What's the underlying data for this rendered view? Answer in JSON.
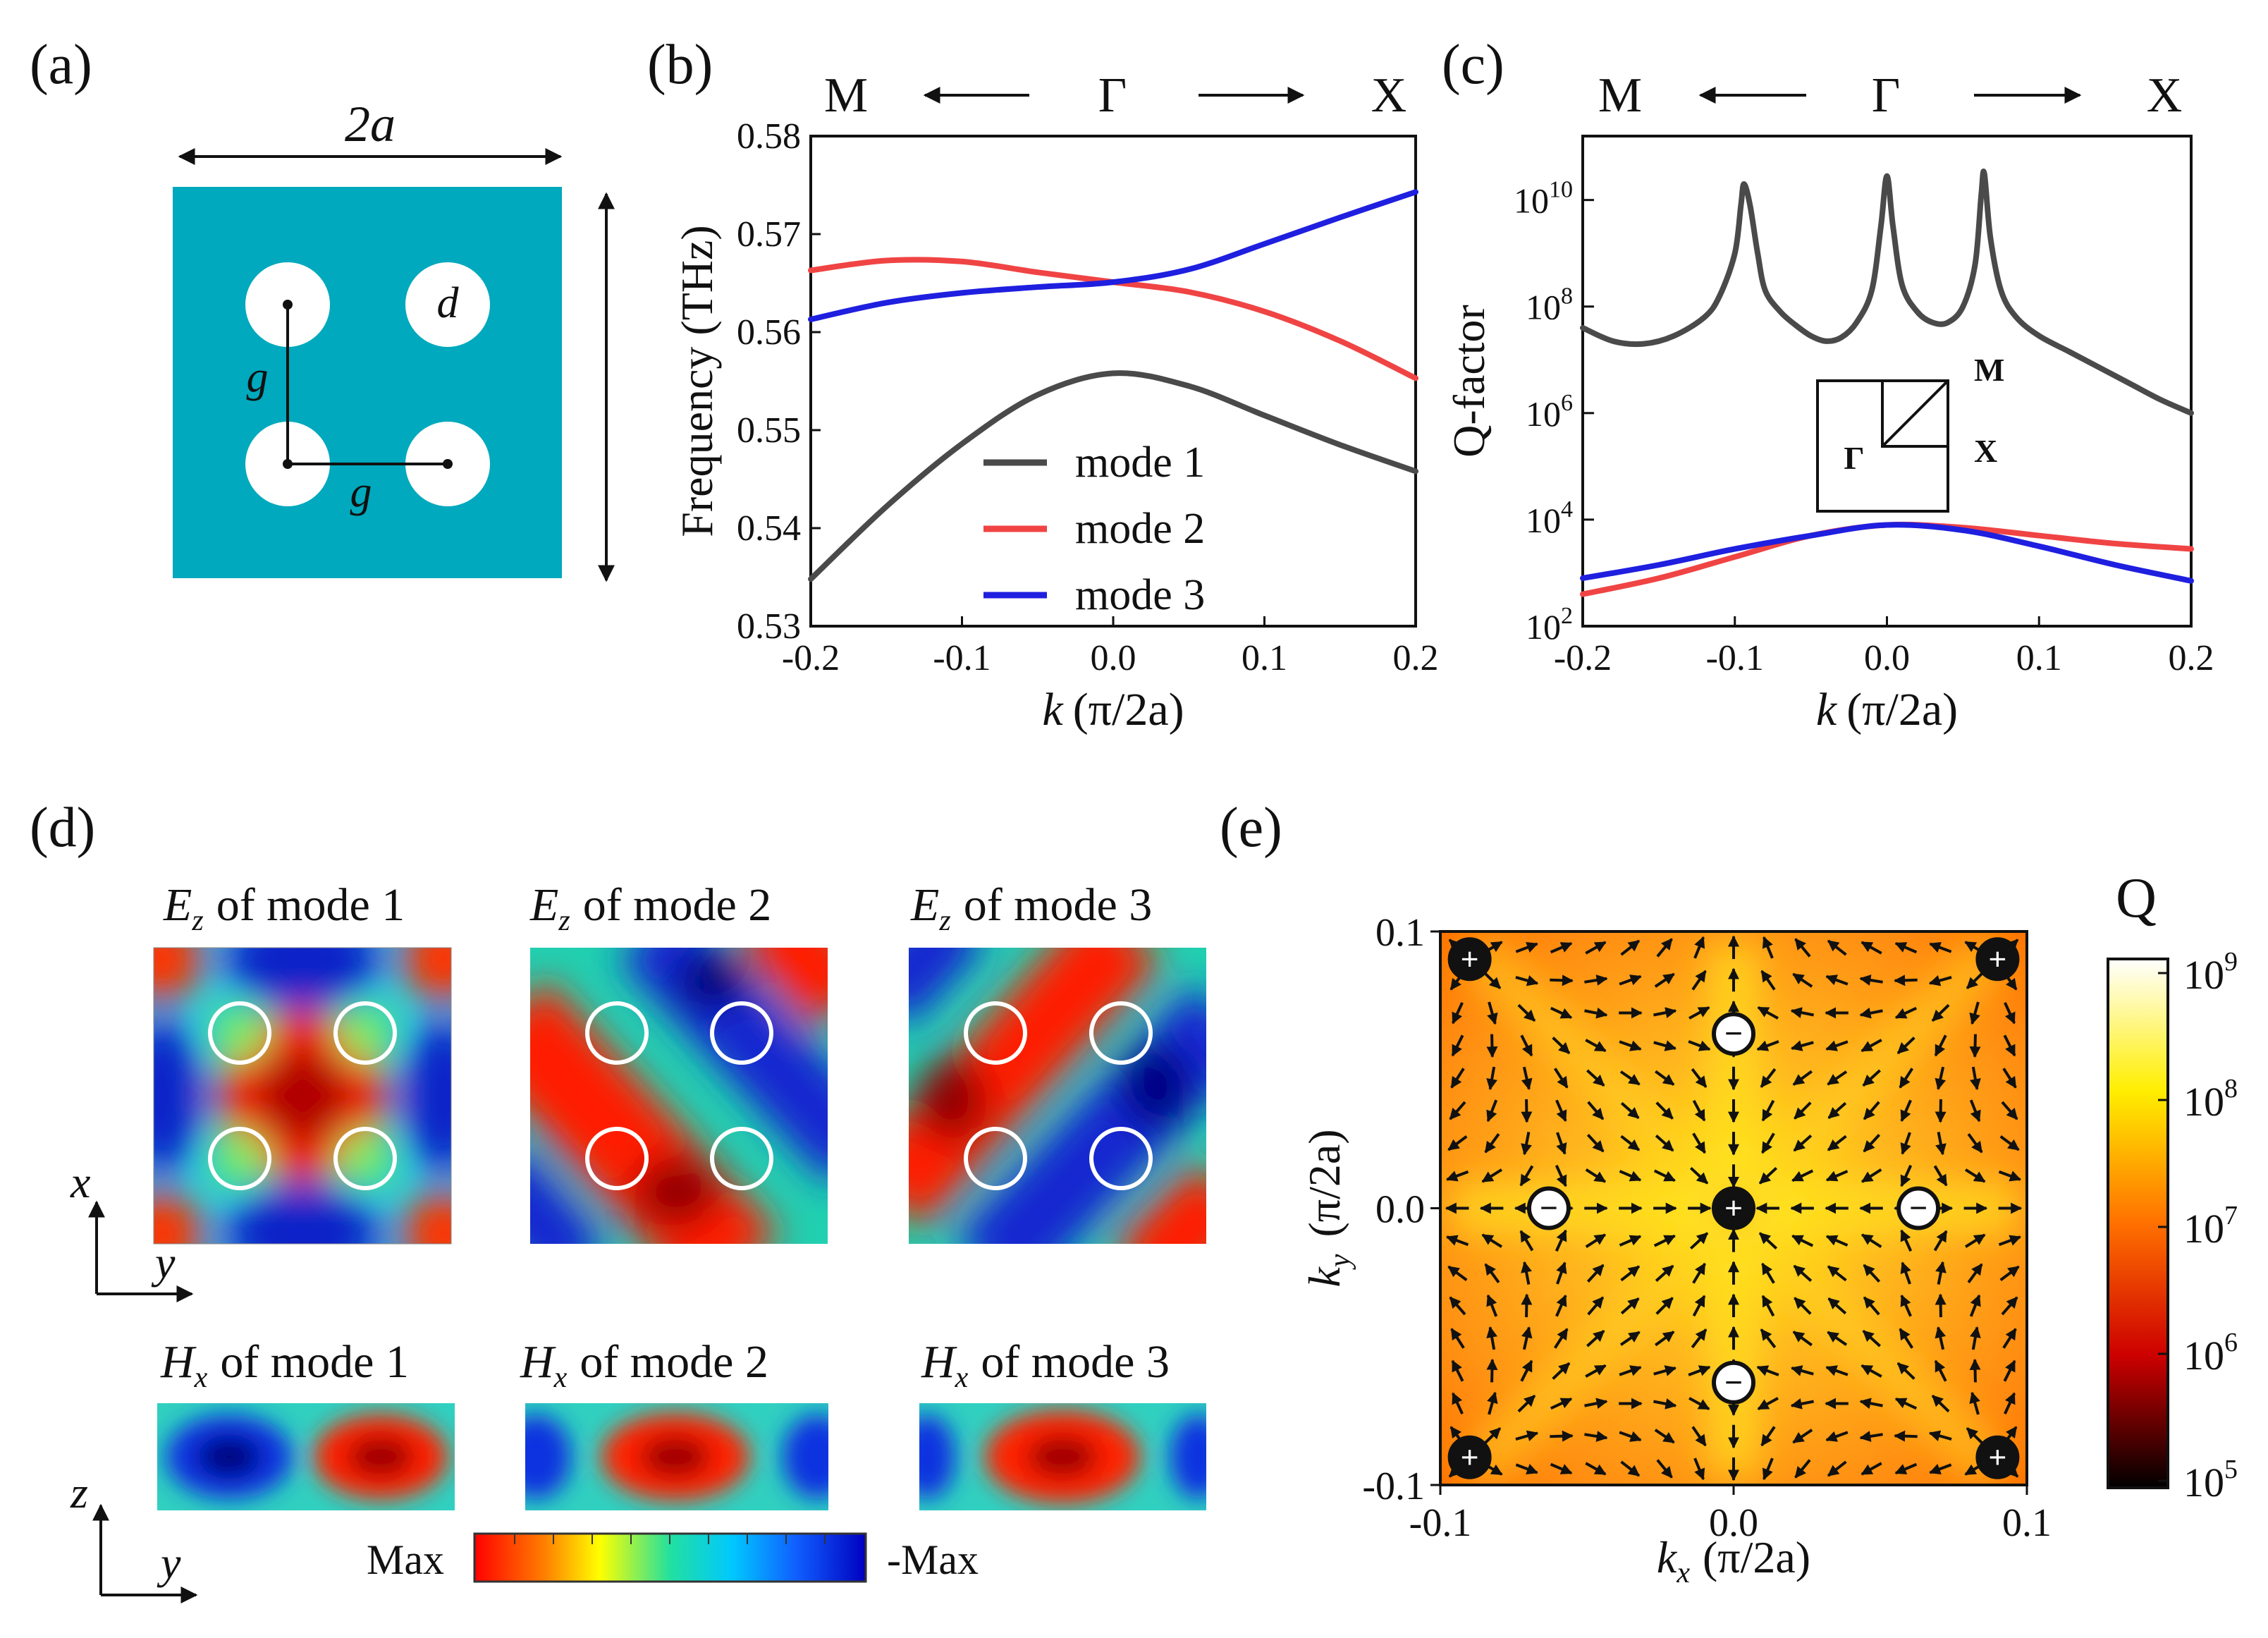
{
  "panels": {
    "a": {
      "label": "(a)",
      "width_label": "2a",
      "diameter_label": "d",
      "gap_label_vertical": "g",
      "gap_label_horizontal": "g",
      "slab_color": "#00A9BD"
    },
    "b": {
      "label": "(b)",
      "dir_left": "M",
      "dir_center": "Γ",
      "dir_right": "X"
    },
    "c": {
      "label": "(c)",
      "dir_left": "M",
      "dir_center": "Γ",
      "dir_right": "X",
      "inset": {
        "gamma": "Γ",
        "m": "M",
        "x": "X"
      }
    },
    "d": {
      "label": "(d)",
      "ez_titles": [
        "of mode 1",
        "of mode 2",
        "of mode 3"
      ],
      "hx_titles": [
        "of mode 1",
        "of mode 2",
        "of mode 3"
      ],
      "ez_symbol": "E",
      "ez_sub": "z",
      "hx_symbol": "H",
      "hx_sub": "x",
      "axes_top": {
        "vertical": "x",
        "horizontal": "y"
      },
      "axes_bottom": {
        "vertical": "z",
        "horizontal": "y"
      },
      "colorbar": {
        "max_label": "Max",
        "min_label": "-Max"
      }
    },
    "e": {
      "label": "(e)",
      "colorbar_title": "Q"
    }
  },
  "chart_data": [
    {
      "id": "b",
      "type": "line",
      "ylabel": "Frequency (THz)",
      "xlabel_var": "k",
      "xlabel_unit": "(π/2a)",
      "xlim": [
        -0.2,
        0.2
      ],
      "ylim": [
        0.53,
        0.58
      ],
      "xticks": [
        -0.2,
        -0.1,
        0.0,
        0.1,
        0.2
      ],
      "xtick_labels": [
        "-0.2",
        "-0.1",
        "0.0",
        "0.1",
        "0.2"
      ],
      "yticks": [
        0.53,
        0.54,
        0.55,
        0.56,
        0.57,
        0.58
      ],
      "ytick_labels": [
        "0.53",
        "0.54",
        "0.55",
        "0.56",
        "0.57",
        "0.58"
      ],
      "x": [
        -0.2,
        -0.15,
        -0.1,
        -0.05,
        0.0,
        0.05,
        0.1,
        0.15,
        0.2
      ],
      "series": [
        {
          "name": "mode 1",
          "color": "#4a4a4a",
          "values": [
            0.5348,
            0.5422,
            0.5486,
            0.5536,
            0.5558,
            0.5545,
            0.5515,
            0.5485,
            0.5458
          ]
        },
        {
          "name": "mode 2",
          "color": "#f04444",
          "values": [
            0.5663,
            0.5673,
            0.5672,
            0.5661,
            0.5651,
            0.5641,
            0.5621,
            0.5591,
            0.5553
          ]
        },
        {
          "name": "mode 3",
          "color": "#1f1fe0",
          "values": [
            0.5613,
            0.563,
            0.564,
            0.5646,
            0.5651,
            0.5664,
            0.569,
            0.5717,
            0.5743
          ]
        }
      ],
      "legend": "lower-right"
    },
    {
      "id": "c",
      "type": "line",
      "yscale": "log",
      "ylabel": "Q-factor",
      "xlabel_var": "k",
      "xlabel_unit": "(π/2a)",
      "xlim": [
        -0.2,
        0.2
      ],
      "ylim_exp": [
        2,
        11.2
      ],
      "xticks": [
        -0.2,
        -0.1,
        0.0,
        0.1,
        0.2
      ],
      "xtick_labels": [
        "-0.2",
        "-0.1",
        "0.0",
        "0.1",
        "0.2"
      ],
      "ytick_exps": [
        2,
        4,
        6,
        8,
        10
      ],
      "ytick_base": "10",
      "ytick_sup": [
        "2",
        "4",
        "6",
        "8",
        "10"
      ],
      "series": [
        {
          "name": "mode 1",
          "color": "#4a4a4a",
          "x": [
            -0.2,
            -0.18,
            -0.16,
            -0.14,
            -0.12,
            -0.11,
            -0.1,
            -0.096,
            -0.094,
            -0.09,
            -0.085,
            -0.08,
            -0.07,
            -0.06,
            -0.05,
            -0.04,
            -0.03,
            -0.02,
            -0.01,
            -0.004,
            0.0,
            0.004,
            0.01,
            0.02,
            0.03,
            0.04,
            0.05,
            0.058,
            0.062,
            0.064,
            0.068,
            0.075,
            0.085,
            0.1,
            0.12,
            0.14,
            0.16,
            0.18,
            0.2
          ],
          "log_q": [
            7.6,
            7.35,
            7.3,
            7.45,
            7.8,
            8.2,
            9.0,
            9.9,
            10.3,
            9.9,
            9.0,
            8.3,
            7.9,
            7.65,
            7.45,
            7.35,
            7.42,
            7.7,
            8.3,
            9.5,
            10.45,
            9.5,
            8.4,
            7.9,
            7.7,
            7.7,
            8.0,
            8.8,
            10.1,
            10.5,
            9.3,
            8.3,
            7.8,
            7.45,
            7.15,
            6.85,
            6.55,
            6.25,
            6.0
          ]
        },
        {
          "name": "mode 2",
          "color": "#f04444",
          "x": [
            -0.2,
            -0.15,
            -0.1,
            -0.05,
            0.0,
            0.05,
            0.1,
            0.15,
            0.2
          ],
          "log_q": [
            2.6,
            2.9,
            3.3,
            3.7,
            3.9,
            3.85,
            3.7,
            3.55,
            3.45
          ]
        },
        {
          "name": "mode 3",
          "color": "#1f1fe0",
          "x": [
            -0.2,
            -0.15,
            -0.1,
            -0.05,
            0.0,
            0.05,
            0.1,
            0.15,
            0.2
          ],
          "log_q": [
            2.9,
            3.15,
            3.45,
            3.7,
            3.9,
            3.8,
            3.5,
            3.15,
            2.85
          ]
        }
      ]
    },
    {
      "id": "e",
      "type": "heatmap",
      "xlabel_var": "k",
      "xlabel_sub": "x",
      "xlabel_unit": "(π/2a)",
      "ylabel_var": "k",
      "ylabel_sub": "y",
      "ylabel_unit": "(π/2a)",
      "xlim": [
        -0.1,
        0.1
      ],
      "ylim": [
        -0.1,
        0.1
      ],
      "xticks": [
        -0.1,
        0.0,
        0.1
      ],
      "xtick_labels": [
        "-0.1",
        "0.0",
        "0.1"
      ],
      "yticks": [
        -0.1,
        0.0,
        0.1
      ],
      "ytick_labels": [
        "-0.1",
        "0.0",
        "0.1"
      ],
      "colorbar_exps": [
        5,
        6,
        7,
        8,
        9
      ],
      "colorbar_base": "10",
      "colorbar_sup": [
        "5",
        "6",
        "7",
        "8",
        "9"
      ],
      "vortices": [
        {
          "kx": -0.09,
          "ky": 0.09,
          "charge": "+"
        },
        {
          "kx": 0.09,
          "ky": 0.09,
          "charge": "+"
        },
        {
          "kx": -0.09,
          "ky": -0.09,
          "charge": "+"
        },
        {
          "kx": 0.09,
          "ky": -0.09,
          "charge": "+"
        },
        {
          "kx": 0.0,
          "ky": 0.0,
          "charge": "+"
        },
        {
          "kx": 0.0,
          "ky": 0.063,
          "charge": "−"
        },
        {
          "kx": 0.0,
          "ky": -0.063,
          "charge": "−"
        },
        {
          "kx": -0.063,
          "ky": 0.0,
          "charge": "−"
        },
        {
          "kx": 0.063,
          "ky": 0.0,
          "charge": "−"
        }
      ]
    }
  ]
}
